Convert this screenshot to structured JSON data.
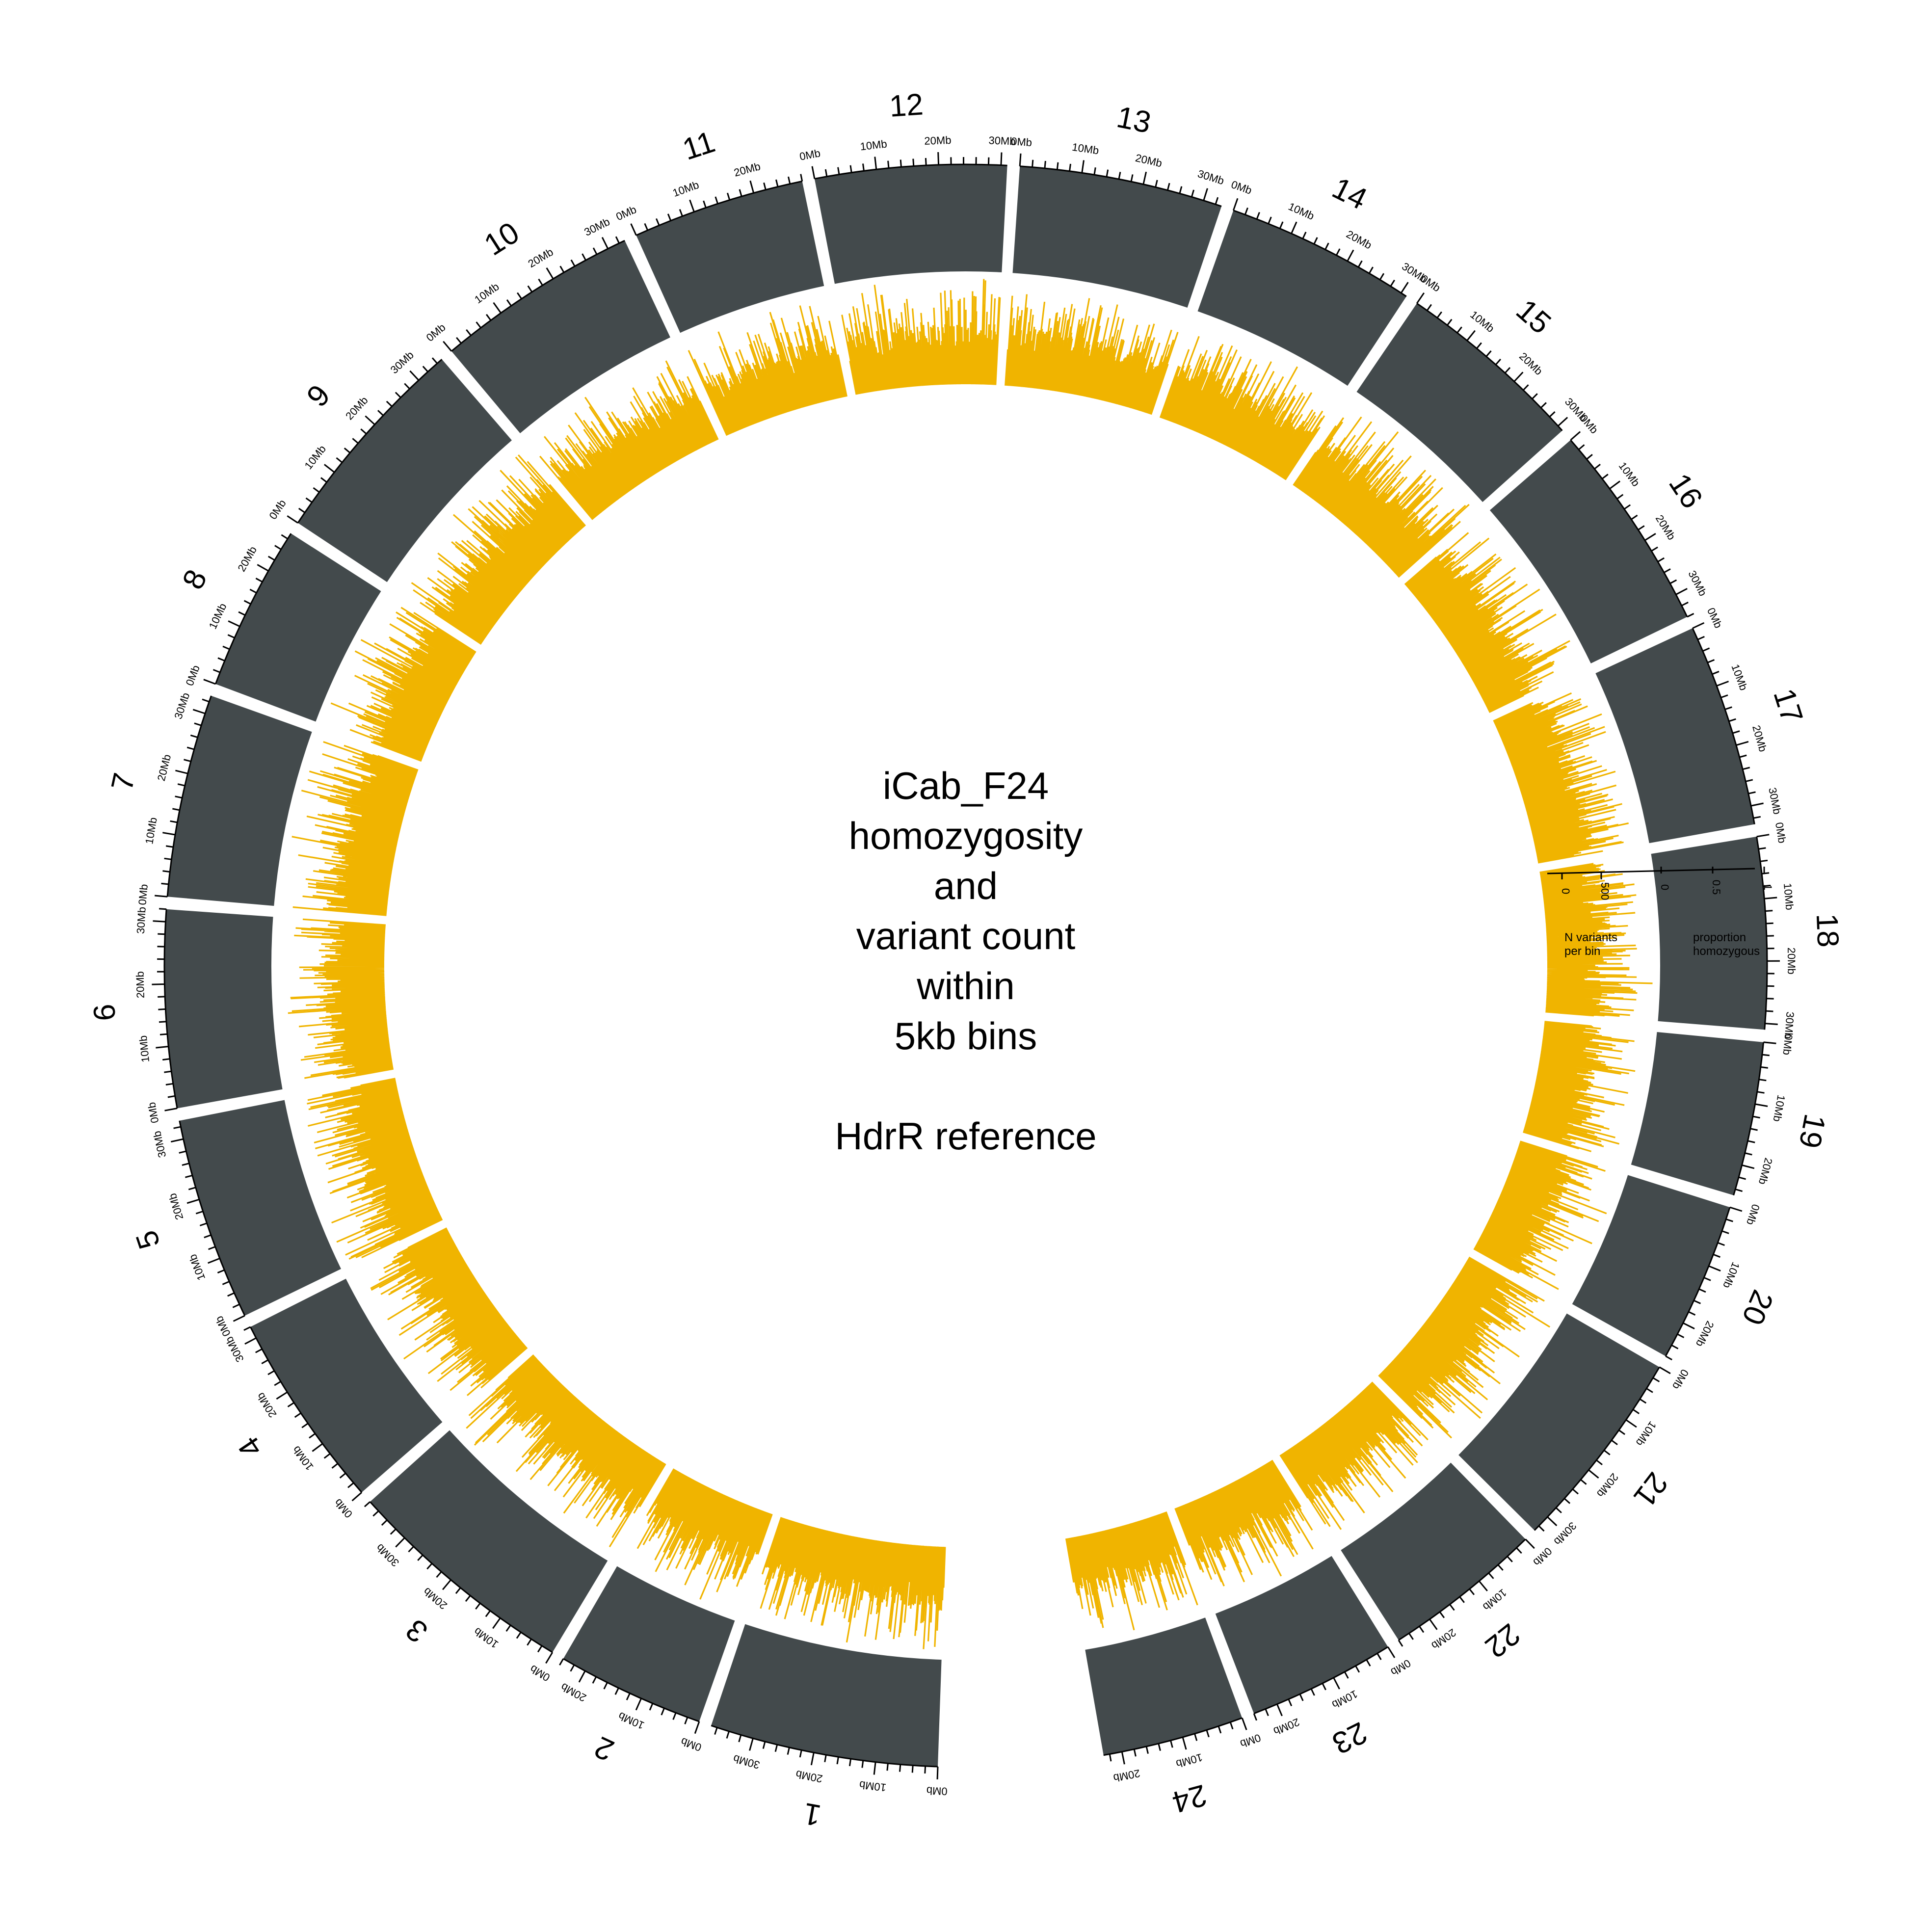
{
  "title_lines": [
    "iCab_F24",
    "homozygosity",
    "and",
    "variant count",
    "within",
    "5kb bins"
  ],
  "subtitle": "HdrR reference",
  "colors": {
    "homozygosity_track": "#434a4c",
    "variant_track": "#f0b400",
    "background": "#ffffff",
    "text": "#000000"
  },
  "tracks": {
    "variants": {
      "axis_label_lines": [
        "N variants",
        "per bin"
      ],
      "axis_ticks": [
        "0",
        "500"
      ]
    },
    "homozygosity": {
      "axis_label_lines": [
        "proportion",
        "homozygous"
      ],
      "axis_ticks": [
        "0",
        "0.5",
        "1"
      ]
    }
  },
  "chart_data": {
    "type": "circos",
    "tick_unit": "Mb",
    "chromosomes": [
      {
        "name": "1",
        "length_mb": 37,
        "ticks": [
          "0Mb",
          "10Mb",
          "20Mb",
          "30Mb"
        ]
      },
      {
        "name": "2",
        "length_mb": 24,
        "ticks": [
          "0Mb",
          "10Mb",
          "20Mb"
        ]
      },
      {
        "name": "3",
        "length_mb": 38,
        "ticks": [
          "0Mb",
          "10Mb",
          "20Mb",
          "30Mb"
        ]
      },
      {
        "name": "4",
        "length_mb": 32,
        "ticks": [
          "0Mb",
          "10Mb",
          "20Mb",
          "30Mb"
        ]
      },
      {
        "name": "5",
        "length_mb": 33,
        "ticks": [
          "0Mb",
          "10Mb",
          "20Mb",
          "30Mb"
        ]
      },
      {
        "name": "6",
        "length_mb": 32,
        "ticks": [
          "0Mb",
          "10Mb",
          "20Mb",
          "30Mb"
        ]
      },
      {
        "name": "7",
        "length_mb": 33,
        "ticks": [
          "0Mb",
          "10Mb",
          "20Mb",
          "30Mb"
        ]
      },
      {
        "name": "8",
        "length_mb": 27,
        "ticks": [
          "0Mb",
          "10Mb",
          "20Mb"
        ]
      },
      {
        "name": "9",
        "length_mb": 35,
        "ticks": [
          "0Mb",
          "10Mb",
          "20Mb",
          "30Mb"
        ]
      },
      {
        "name": "10",
        "length_mb": 33,
        "ticks": [
          "0Mb",
          "10Mb",
          "20Mb",
          "30Mb"
        ]
      },
      {
        "name": "11",
        "length_mb": 28,
        "ticks": [
          "0Mb",
          "10Mb",
          "20Mb"
        ]
      },
      {
        "name": "12",
        "length_mb": 31,
        "ticks": [
          "0Mb",
          "10Mb",
          "20Mb",
          "30Mb"
        ]
      },
      {
        "name": "13",
        "length_mb": 33,
        "ticks": [
          "0Mb",
          "10Mb",
          "20Mb",
          "30Mb"
        ]
      },
      {
        "name": "14",
        "length_mb": 31,
        "ticks": [
          "0Mb",
          "10Mb",
          "20Mb",
          "30Mb"
        ]
      },
      {
        "name": "15",
        "length_mb": 31,
        "ticks": [
          "0Mb",
          "10Mb",
          "20Mb",
          "30Mb"
        ]
      },
      {
        "name": "16",
        "length_mb": 34,
        "ticks": [
          "0Mb",
          "10Mb",
          "20Mb",
          "30Mb"
        ]
      },
      {
        "name": "17",
        "length_mb": 33,
        "ticks": [
          "0Mb",
          "10Mb",
          "20Mb",
          "30Mb"
        ]
      },
      {
        "name": "18",
        "length_mb": 31,
        "ticks": [
          "0Mb",
          "10Mb",
          "20Mb",
          "30Mb"
        ]
      },
      {
        "name": "19",
        "length_mb": 25,
        "ticks": [
          "0Mb",
          "10Mb",
          "20Mb"
        ]
      },
      {
        "name": "20",
        "length_mb": 26,
        "ticks": [
          "0Mb",
          "10Mb",
          "20Mb"
        ]
      },
      {
        "name": "21",
        "length_mb": 33,
        "ticks": [
          "0Mb",
          "10Mb",
          "20Mb",
          "30Mb"
        ]
      },
      {
        "name": "22",
        "length_mb": 26,
        "ticks": [
          "0Mb",
          "10Mb",
          "20Mb"
        ]
      },
      {
        "name": "23",
        "length_mb": 24,
        "ticks": [
          "0Mb",
          "10Mb",
          "20Mb"
        ]
      },
      {
        "name": "24",
        "length_mb": 23,
        "ticks": [
          "0Mb",
          "10Mb",
          "20Mb"
        ]
      }
    ]
  }
}
